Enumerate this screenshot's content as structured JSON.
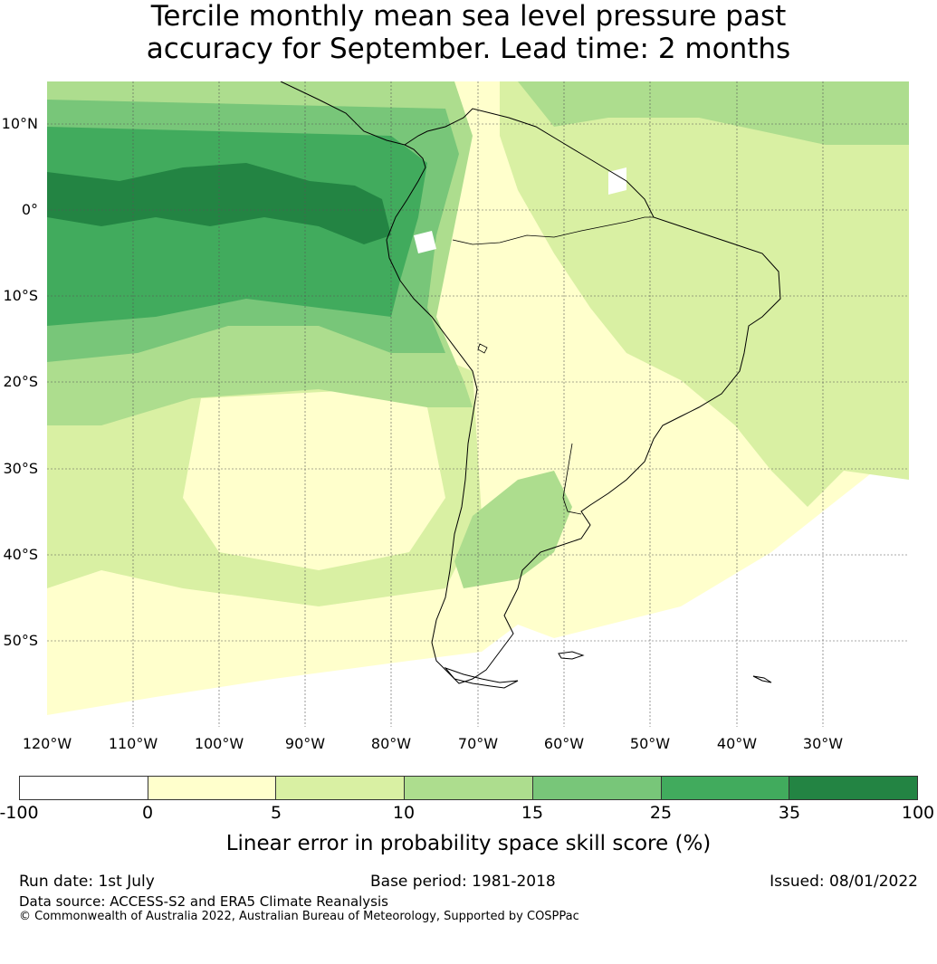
{
  "title": {
    "line1": "Tercile monthly mean sea level pressure past",
    "line2": "accuracy for September. Lead time: 2 months"
  },
  "map": {
    "latitude_labels": [
      "10°N",
      "0°",
      "10°S",
      "20°S",
      "30°S",
      "40°S",
      "50°S"
    ],
    "longitude_labels": [
      "120°W",
      "110°W",
      "100°W",
      "90°W",
      "80°W",
      "70°W",
      "60°W",
      "50°W",
      "40°W",
      "30°W"
    ],
    "colors": {
      "class_minus100_0": "#ffffff",
      "class_0_5": "#ffffcc",
      "class_5_10": "#d9f0a3",
      "class_10_15": "#addd8e",
      "class_15_25": "#78c679",
      "class_25_35": "#41ab5d",
      "class_35_100": "#238443",
      "coastline": "#000000",
      "gridline": "#555555"
    }
  },
  "colorbar": {
    "ticks": [
      "-100",
      "0",
      "5",
      "10",
      "15",
      "25",
      "35",
      "100"
    ],
    "colors": [
      "#ffffff",
      "#ffffcc",
      "#d9f0a3",
      "#addd8e",
      "#78c679",
      "#41ab5d",
      "#238443"
    ],
    "label": "Linear error in probability space skill score (%)"
  },
  "footer": {
    "run_date": "Run date: 1st July",
    "base_period": "Base period: 1981-2018",
    "issued": "Issued: 08/01/2022",
    "data_source": "Data source: ACCESS-S2 and ERA5 Climate Reanalysis",
    "copyright": "© Commonwealth of Australia 2022, Australian Bureau of Meteorology, Supported by COSPPac"
  }
}
